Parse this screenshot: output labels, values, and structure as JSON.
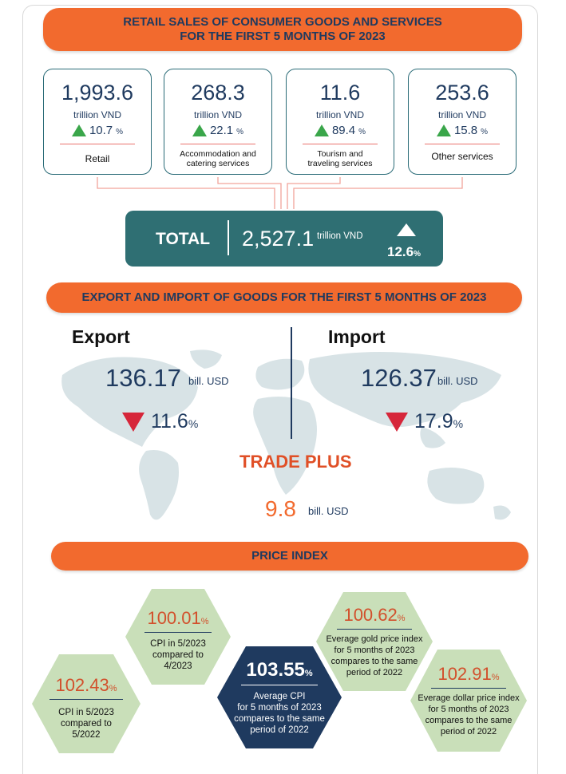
{
  "retail": {
    "title_line1": "RETAIL SALES OF CONSUMER GOODS AND SERVICES",
    "title_line2": "FOR THE FIRST 5 MONTHS OF 2023",
    "cards": [
      {
        "value": "1,993.6",
        "unit": "trillion VND",
        "change": "10.7",
        "pct": "%",
        "label": "Retail"
      },
      {
        "value": "268.3",
        "unit": "trillion VND",
        "change": "22.1",
        "pct": "%",
        "label": "Accommodation and catering services"
      },
      {
        "value": "11.6",
        "unit": "trillion VND",
        "change": "89.4",
        "pct": "%",
        "label": "Tourism and traveling services"
      },
      {
        "value": "253.6",
        "unit": "trillion VND",
        "change": "15.8",
        "pct": "%",
        "label": "Other services"
      }
    ],
    "total": {
      "label": "TOTAL",
      "value": "2,527.1",
      "unit": "trillion VND",
      "change": "12.6",
      "pct": "%"
    }
  },
  "trade": {
    "title": "EXPORT AND IMPORT OF GOODS FOR THE FIRST 5 MONTHS OF 2023",
    "export": {
      "label": "Export",
      "value": "136.17",
      "unit": "bill. USD",
      "change": "11.6",
      "pct": "%"
    },
    "import": {
      "label": "Import",
      "value": "126.37",
      "unit": "bill. USD",
      "change": "17.9",
      "pct": "%"
    },
    "plus": {
      "label": "TRADE PLUS",
      "value": "9.8",
      "unit": "bill. USD"
    }
  },
  "price": {
    "title": "PRICE INDEX",
    "items": [
      {
        "value": "100.01",
        "pct": "%",
        "desc": [
          "CPI in 5/2023",
          "compared to",
          "4/2023"
        ]
      },
      {
        "value": "102.43",
        "pct": "%",
        "desc": [
          "CPI in 5/2023",
          "compared to",
          "5/2022"
        ]
      },
      {
        "value": "103.55",
        "pct": "%",
        "desc": [
          "Average CPI",
          "for 5 months of 2023",
          "compares to the same",
          "period of 2022"
        ]
      },
      {
        "value": "100.62",
        "pct": "%",
        "desc": [
          "Everage gold price index",
          "for 5 months of 2023",
          "compares to the same",
          "period of 2022"
        ]
      },
      {
        "value": "102.91",
        "pct": "%",
        "desc": [
          "Everage dollar price index",
          "for 5 months of 2023",
          "compares to the same",
          "period of 2022"
        ]
      }
    ]
  },
  "colors": {
    "orange": "#f26a2e",
    "teal": "#2f6f73",
    "navy": "#1f3a5f",
    "hex_green": "#c9dfb9",
    "up_green": "#3aa64a",
    "down_red": "#d6263a"
  },
  "icons": {
    "increase": "triangle-up-icon",
    "decrease": "triangle-down-icon"
  }
}
